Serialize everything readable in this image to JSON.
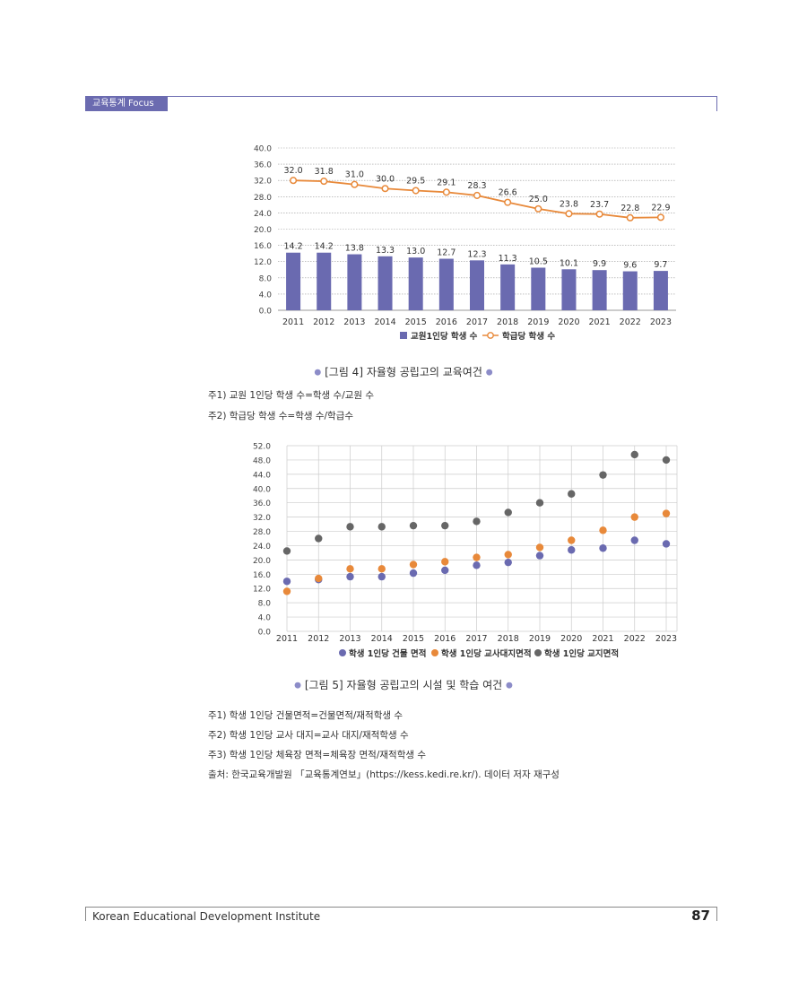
{
  "header": {
    "tag": "교육통계 Focus"
  },
  "chart_data": [
    {
      "type": "bar+line",
      "categories": [
        "2011",
        "2012",
        "2013",
        "2014",
        "2015",
        "2016",
        "2017",
        "2018",
        "2019",
        "2020",
        "2021",
        "2022",
        "2023"
      ],
      "series": [
        {
          "name": "교원1인당 학생 수",
          "kind": "bar",
          "color": "#6a6ab0",
          "values": [
            14.2,
            14.2,
            13.8,
            13.3,
            13.0,
            12.7,
            12.3,
            11.3,
            10.5,
            10.1,
            9.9,
            9.6,
            9.7
          ],
          "labels": [
            "14.2",
            "14.2",
            "13.8",
            "13.3",
            "13.0",
            "12.7",
            "12.3",
            "11.3",
            "10.5",
            "10.1",
            "9.9",
            "9.6",
            "9.7"
          ]
        },
        {
          "name": "학급당 학생 수",
          "kind": "line",
          "color": "#e8893a",
          "values": [
            32.0,
            31.8,
            31.0,
            30.0,
            29.5,
            29.1,
            28.3,
            26.6,
            25.0,
            23.8,
            23.7,
            22.8,
            22.9
          ],
          "labels": [
            "32.0",
            "31.8",
            "31.0",
            "30.0",
            "29.5",
            "29.1",
            "28.3",
            "26.6",
            "25.0",
            "23.8",
            "23.7",
            "22.8",
            "22.9"
          ]
        }
      ],
      "ylim": [
        0,
        40
      ],
      "yticks": [
        "0.0",
        "4.0",
        "8.0",
        "12.0",
        "16.0",
        "20.0",
        "24.0",
        "28.0",
        "32.0",
        "36.0",
        "40.0"
      ],
      "caption": "[그림 4] 자율형 공립고의 교육여건"
    },
    {
      "type": "scatter",
      "categories": [
        "2011",
        "2012",
        "2013",
        "2014",
        "2015",
        "2016",
        "2017",
        "2018",
        "2019",
        "2020",
        "2021",
        "2022",
        "2023"
      ],
      "series": [
        {
          "name": "학생 1인당 건물 면적",
          "color": "#6a6ab0",
          "values": [
            14.0,
            14.5,
            15.3,
            15.3,
            16.3,
            17.1,
            18.5,
            19.3,
            21.2,
            22.8,
            23.3,
            25.5,
            24.5
          ]
        },
        {
          "name": "학생 1인당 교사대지면적",
          "color": "#e8893a",
          "values": [
            11.2,
            14.8,
            17.5,
            17.5,
            18.7,
            19.5,
            20.7,
            21.5,
            23.5,
            25.5,
            28.3,
            32.0,
            33.0
          ]
        },
        {
          "name": "학생 1인당 교지면적",
          "color": "#666666",
          "values": [
            22.5,
            26.0,
            29.3,
            29.3,
            29.6,
            29.6,
            30.8,
            33.3,
            36.0,
            38.5,
            43.8,
            49.5,
            48.0
          ]
        }
      ],
      "ylim": [
        0,
        52
      ],
      "yticks": [
        "0.0",
        "4.0",
        "8.0",
        "12.0",
        "16.0",
        "20.0",
        "24.0",
        "28.0",
        "32.0",
        "36.0",
        "40.0",
        "44.0",
        "48.0",
        "52.0"
      ],
      "caption": "[그림 5] 자율형 공립고의 시설 및 학습 여건"
    }
  ],
  "notes1": [
    "주1) 교원 1인당 학생 수=학생 수/교원 수",
    "주2) 학급당 학생 수=학생 수/학급수"
  ],
  "notes2": [
    "주1) 학생 1인당 건물면적=건물면적/재적학생 수",
    "주2) 학생 1인당 교사 대지=교사 대지/재적학생 수",
    "주3) 학생 1인당 체육장 면적=체육장 면적/재적학생 수",
    "출처: 한국교육개발원 「교육통계연보」(https://kess.kedi.re.kr/). 데이터 저자 재구성"
  ],
  "footer": {
    "institute": "Korean Educational Development Institute",
    "page": "87"
  }
}
